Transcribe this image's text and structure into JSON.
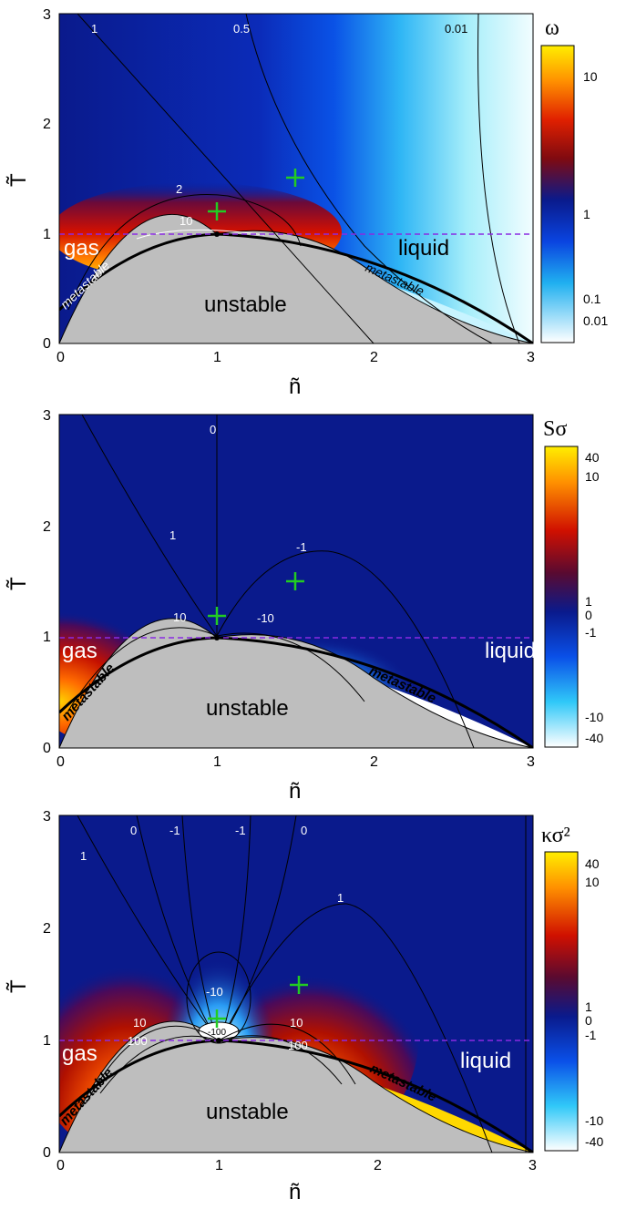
{
  "chart_data": [
    {
      "type": "heatmap",
      "panel": "top",
      "quantity": "ω",
      "xlabel": "ñ",
      "ylabel": "T̃",
      "xlim": [
        0,
        3
      ],
      "ylim": [
        0,
        3
      ],
      "xticks": [
        "0",
        "1",
        "2",
        "3"
      ],
      "yticks": [
        "0",
        "1",
        "2",
        "3"
      ],
      "colorbar": {
        "title": "ω",
        "ticks": [
          "10",
          "1",
          "0.1",
          "0.01"
        ],
        "scale": "log"
      },
      "contour_labels": [
        "1",
        "0.5",
        "0.01",
        "2",
        "10"
      ],
      "region_labels": {
        "gas": "gas",
        "liquid": "liquid",
        "unstable": "unstable",
        "metastable_left": "metastable",
        "metastable_right": "metastable"
      },
      "markers": [
        {
          "x": 1.0,
          "y": 1.2
        },
        {
          "x": 1.5,
          "y": 1.5
        }
      ],
      "critical_point": {
        "x": 1.0,
        "y": 1.0
      },
      "dashed_line_y": 1.0
    },
    {
      "type": "heatmap",
      "panel": "middle",
      "quantity": "Sσ",
      "xlabel": "ñ",
      "ylabel": "T̃",
      "xlim": [
        0,
        3
      ],
      "ylim": [
        0,
        3
      ],
      "xticks": [
        "0",
        "1",
        "2",
        "3"
      ],
      "yticks": [
        "0",
        "1",
        "2",
        "3"
      ],
      "colorbar": {
        "title": "Sσ",
        "ticks": [
          "40",
          "10",
          "1",
          "0",
          "-1",
          "-10",
          "-40"
        ]
      },
      "contour_labels": [
        "0",
        "1",
        "-1",
        "10",
        "-10"
      ],
      "region_labels": {
        "gas": "gas",
        "liquid": "liquid",
        "unstable": "unstable",
        "metastable_left": "metastable",
        "metastable_right": "metastable"
      },
      "markers": [
        {
          "x": 1.0,
          "y": 1.2
        },
        {
          "x": 1.5,
          "y": 1.5
        }
      ],
      "critical_point": {
        "x": 1.0,
        "y": 1.0
      },
      "dashed_line_y": 1.0
    },
    {
      "type": "heatmap",
      "panel": "bottom",
      "quantity": "κσ²",
      "xlabel": "ñ",
      "ylabel": "T̃",
      "xlim": [
        0,
        3
      ],
      "ylim": [
        0,
        3
      ],
      "xticks": [
        "0",
        "1",
        "2",
        "3"
      ],
      "yticks": [
        "0",
        "1",
        "2",
        "3"
      ],
      "colorbar": {
        "title": "κσ²",
        "ticks": [
          "40",
          "10",
          "1",
          "0",
          "-1",
          "-10",
          "-40"
        ]
      },
      "contour_labels": [
        "1",
        "0",
        "-1",
        "-1",
        "0",
        "1",
        "-10",
        "10",
        "10",
        "100",
        "100",
        "-100"
      ],
      "region_labels": {
        "gas": "gas",
        "liquid": "liquid",
        "unstable": "unstable",
        "metastable_left": "metastable",
        "metastable_right": "metastable"
      },
      "markers": [
        {
          "x": 1.0,
          "y": 1.2
        },
        {
          "x": 1.5,
          "y": 1.5
        }
      ],
      "critical_point": {
        "x": 1.0,
        "y": 1.0
      },
      "dashed_line_y": 1.0
    }
  ]
}
